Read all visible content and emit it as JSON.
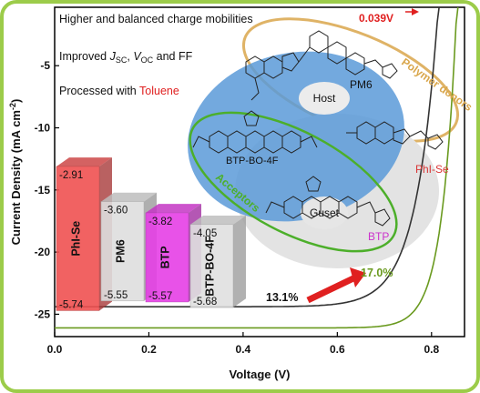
{
  "chart_data": {
    "type": "line",
    "xlabel": "Voltage (V)",
    "ylabel": "Current Density (mA cm",
    "ylabel_sup": "-2",
    "ylabel_end": ")",
    "xlim": [
      0,
      0.87
    ],
    "ylim": [
      -26.8,
      -0.3
    ],
    "x_ticks": [
      0.0,
      0.2,
      0.4,
      0.6,
      0.8
    ],
    "x_tick_labels": [
      "0.0",
      "0.2",
      "0.4",
      "0.6",
      "0.8"
    ],
    "y_ticks": [
      -5,
      -10,
      -15,
      -20,
      -25
    ],
    "y_tick_labels": [
      "-5",
      "-10",
      "-15",
      "-20",
      "-25"
    ],
    "series": [
      {
        "color": "#333333",
        "jsc": -24.4,
        "voc": 0.815,
        "n": 1.8
      },
      {
        "color": "#6a9a1f",
        "jsc": -26.1,
        "voc": 0.854,
        "n": 1.2
      }
    ],
    "annotations": {
      "voc_shift": "0.039V",
      "pce_gain_low": "13.1%",
      "pce_gain_high": "17.0%"
    },
    "notes": [
      {
        "text": "Higher and balanced charge mobilities"
      },
      {
        "parts": [
          "Improved ",
          "J",
          "SC",
          ", ",
          "V",
          "OC",
          " and FF"
        ]
      },
      {
        "text": "Processed with ",
        "highlight": "Toluene"
      }
    ],
    "energy_levels": {
      "unit_bars": [
        {
          "name": "PhI-Se",
          "lumo": "-2.91",
          "homo": "-5.74",
          "color": "#f05252"
        },
        {
          "name": "PM6",
          "lumo": "-3.60",
          "homo": "-5.55",
          "color": "#dedede"
        },
        {
          "name": "BTP",
          "lumo": "-3.82",
          "homo": "-5.57",
          "color": "#e640e6"
        },
        {
          "name": "BTP-BO-4F",
          "lumo": "-4.05",
          "homo": "-5.68",
          "color": "#e0e0e0"
        }
      ]
    },
    "molecule_labels": {
      "host": "Host",
      "guest": "Guset",
      "pm6": "PM6",
      "btp_bo_4f": "BTP-BO-4F",
      "phi_se": "PhI-Se",
      "btp": "BTP",
      "polymer_donors": "Polymer donors",
      "acceptors": "Acceptors"
    },
    "colors": {
      "frame": "#9ccc4a",
      "host_ellipse": "#4f93d6",
      "guest_ellipse": "#dcdcdc",
      "donor_ring": "#d9a64b",
      "acceptor_ring": "#4caf2a",
      "btp_text": "#cc33cc",
      "phi_text": "#d93636",
      "highlight_red": "#e02020"
    }
  }
}
